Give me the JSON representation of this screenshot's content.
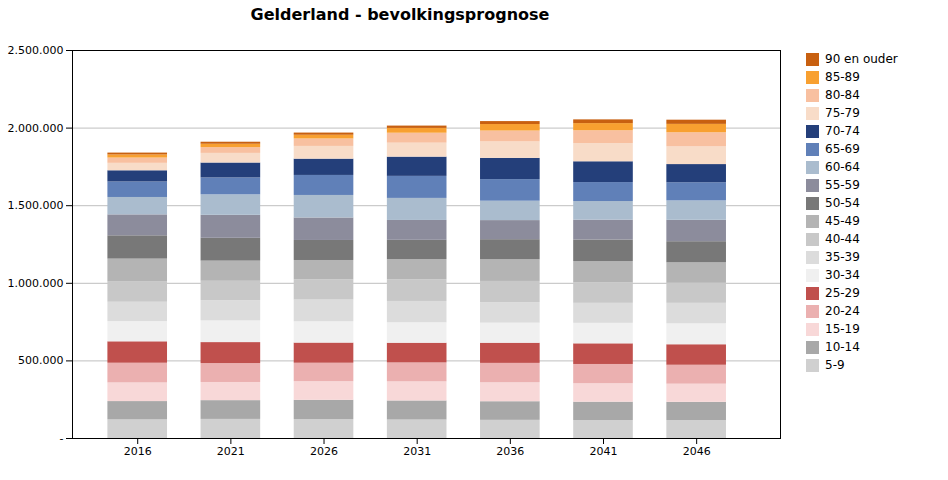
{
  "chart_data": {
    "type": "bar",
    "title": "Gelderland - bevolkingsprognose",
    "stacked": true,
    "grid": true,
    "legend": "right",
    "x": [
      2016,
      2021,
      2026,
      2031,
      2036,
      2041,
      2046
    ],
    "xlim": [
      2012.5,
      2050.5
    ],
    "xticks": [
      2016,
      2021,
      2026,
      2031,
      2036,
      2041,
      2046
    ],
    "ylim": [
      0,
      2500000
    ],
    "yticks": [
      {
        "value": 0,
        "label": "-"
      },
      {
        "value": 500000,
        "label": "500.000"
      },
      {
        "value": 1000000,
        "label": "1.000.000"
      },
      {
        "value": 1500000,
        "label": "1.500.000"
      },
      {
        "value": 2000000,
        "label": "2.000.000"
      },
      {
        "value": 2500000,
        "label": "2.500.000"
      }
    ],
    "series": [
      {
        "name": "5-9",
        "color": "#d0d0d0",
        "values": [
          120000,
          123000,
          122000,
          119000,
          117000,
          116000,
          116000
        ]
      },
      {
        "name": "10-14",
        "color": "#a8a8a8",
        "values": [
          118000,
          121000,
          124000,
          123000,
          120000,
          118000,
          117000
        ]
      },
      {
        "name": "15-19",
        "color": "#f8d8d8",
        "values": [
          120000,
          117000,
          120000,
          123000,
          122000,
          119000,
          117000
        ]
      },
      {
        "name": "20-24",
        "color": "#ebb0b0",
        "values": [
          127000,
          122000,
          119000,
          122000,
          125000,
          124000,
          122000
        ]
      },
      {
        "name": "25-29",
        "color": "#c0504d",
        "values": [
          138000,
          135000,
          130000,
          127000,
          130000,
          133000,
          132000
        ]
      },
      {
        "name": "30-34",
        "color": "#f0f0f0",
        "values": [
          130000,
          140000,
          137000,
          132000,
          129000,
          132000,
          135000
        ]
      },
      {
        "name": "35-39",
        "color": "#dcdcdc",
        "values": [
          125000,
          130000,
          140000,
          137000,
          132000,
          129000,
          132000
        ]
      },
      {
        "name": "40-44",
        "color": "#c8c8c8",
        "values": [
          130000,
          125000,
          130000,
          140000,
          137000,
          132000,
          129000
        ]
      },
      {
        "name": "45-49",
        "color": "#b4b4b4",
        "values": [
          148000,
          130000,
          125000,
          130000,
          140000,
          137000,
          132000
        ]
      },
      {
        "name": "50-54",
        "color": "#787878",
        "values": [
          150000,
          147000,
          129000,
          124000,
          129000,
          139000,
          136000
        ]
      },
      {
        "name": "55-59",
        "color": "#8c8c9c",
        "values": [
          135000,
          148000,
          145000,
          128000,
          123000,
          128000,
          138000
        ]
      },
      {
        "name": "60-64",
        "color": "#aabcce",
        "values": [
          112000,
          132000,
          145000,
          142000,
          125000,
          120000,
          125000
        ]
      },
      {
        "name": "65-69",
        "color": "#6080b8",
        "values": [
          100000,
          109000,
          129000,
          142000,
          139000,
          122000,
          117000
        ]
      },
      {
        "name": "70-74",
        "color": "#243f7a",
        "values": [
          72000,
          96000,
          105000,
          124000,
          137000,
          134000,
          117000
        ]
      },
      {
        "name": "75-79",
        "color": "#f8dcc8",
        "values": [
          48000,
          62000,
          82000,
          90000,
          106000,
          117000,
          114000
        ]
      },
      {
        "name": "80-84",
        "color": "#f8c0a0",
        "values": [
          34000,
          37000,
          48000,
          64000,
          70000,
          83000,
          91000
        ]
      },
      {
        "name": "85-89",
        "color": "#f8a030",
        "values": [
          20000,
          22000,
          24000,
          31000,
          42000,
          46000,
          54000
        ]
      },
      {
        "name": "90 en ouder",
        "color": "#c86010",
        "values": [
          12000,
          13000,
          14000,
          15000,
          19000,
          24000,
          27000
        ]
      }
    ]
  }
}
